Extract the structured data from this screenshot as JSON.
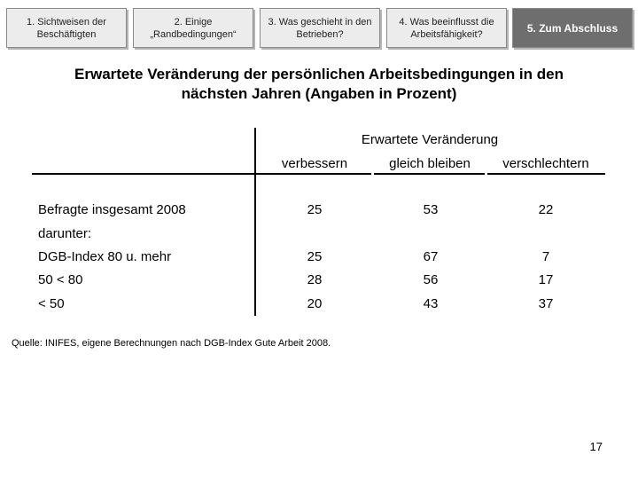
{
  "nav": {
    "tabs": [
      {
        "label": "1. Sichtweisen der Beschäftigten"
      },
      {
        "label": "2. Einige „Randbedingungen“"
      },
      {
        "label": "3. Was geschieht in den Betrieben?"
      },
      {
        "label": "4. Was beeinflusst die Arbeitsfähigkeit?"
      },
      {
        "label": "5. Zum Abschluss",
        "active": true
      }
    ]
  },
  "title": {
    "line1": "Erwartete Veränderung der persönlichen Arbeitsbedingungen in den",
    "line2": "nächsten Jahren (Angaben in Prozent)"
  },
  "table": {
    "group_header": "Erwartete Veränderung",
    "columns": [
      "verbessern",
      "gleich bleiben",
      "verschlechtern"
    ],
    "rows": [
      {
        "label": "Befragte insgesamt 2008",
        "values": [
          "25",
          "53",
          "22"
        ]
      },
      {
        "label": "darunter:",
        "values": []
      },
      {
        "label": "DGB-Index 80 u. mehr",
        "values": [
          "25",
          "67",
          "7"
        ]
      },
      {
        "label": "50 < 80",
        "values": [
          "28",
          "56",
          "17"
        ]
      },
      {
        "label": "< 50",
        "values": [
          "20",
          "43",
          "37"
        ]
      }
    ]
  },
  "source": "Quelle: INIFES, eigene Berechnungen nach DGB-Index Gute Arbeit 2008.",
  "page_number": "17"
}
